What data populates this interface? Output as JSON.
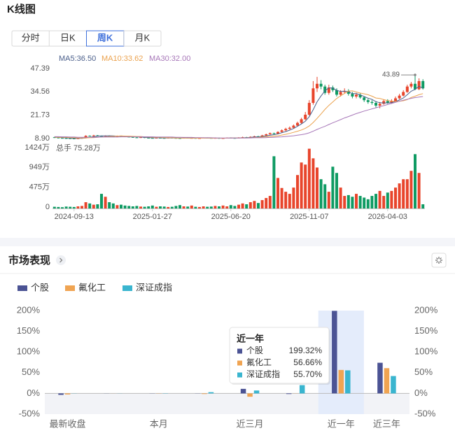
{
  "header": {
    "title": "K线图"
  },
  "tabs": [
    "分时",
    "日K",
    "周K",
    "月K"
  ],
  "active_tab": 2,
  "chart_data": [
    {
      "type": "candlestick",
      "up_color": "#e8452c",
      "down_color": "#0f9b63",
      "x": [
        null,
        null,
        null,
        null,
        null,
        "2024-09-13",
        null,
        null,
        null,
        null,
        null,
        null,
        null,
        null,
        null,
        null,
        null,
        null,
        null,
        null,
        null,
        null,
        null,
        null,
        null,
        "2025-01-27",
        null,
        null,
        null,
        null,
        null,
        null,
        null,
        null,
        null,
        null,
        null,
        null,
        null,
        null,
        null,
        null,
        null,
        null,
        null,
        "2025-06-20",
        null,
        null,
        null,
        null,
        null,
        null,
        null,
        null,
        null,
        null,
        null,
        null,
        null,
        null,
        null,
        null,
        null,
        null,
        null,
        "2025-11-07",
        null,
        null,
        null,
        null,
        null,
        null,
        null,
        null,
        null,
        null,
        null,
        null,
        null,
        null,
        null,
        null,
        null,
        null,
        null,
        "2026-04-03",
        null,
        null,
        null,
        null,
        null,
        null,
        null,
        null,
        null
      ],
      "open": [
        9.6,
        9.4,
        9.2,
        9.1,
        9.0,
        8.9,
        8.8,
        9.0,
        9.3,
        10.4,
        10.2,
        10.6,
        10.3,
        10.1,
        10.4,
        10.2,
        10.0,
        10.3,
        10.1,
        9.9,
        9.7,
        9.5,
        9.4,
        9.6,
        9.3,
        9.2,
        9.1,
        9.3,
        9.2,
        9.0,
        9.4,
        9.2,
        9.1,
        9.0,
        9.3,
        9.1,
        9.2,
        9.0,
        9.1,
        9.3,
        9.2,
        9.1,
        9.2,
        9.0,
        9.1,
        9.3,
        9.2,
        9.0,
        9.4,
        9.6,
        9.5,
        9.8,
        10.1,
        10.0,
        10.6,
        11.2,
        11.8,
        11.5,
        12.5,
        13.4,
        14.2,
        14.8,
        16.0,
        17.5,
        19.5,
        22.0,
        28.5,
        36.5,
        39.0,
        37.5,
        34.0,
        37.0,
        35.5,
        33.0,
        34.5,
        35.0,
        33.5,
        32.0,
        33.0,
        31.5,
        30.0,
        29.0,
        28.5,
        27.0,
        28.0,
        29.5,
        28.5,
        29.5,
        31.0,
        32.5,
        34.5,
        37.5,
        39.0,
        36.0,
        40.5
      ],
      "high": [
        9.8,
        9.6,
        9.4,
        9.3,
        9.2,
        9.1,
        9.2,
        9.5,
        10.7,
        10.6,
        10.9,
        10.8,
        10.5,
        10.6,
        10.6,
        10.4,
        10.5,
        10.5,
        10.3,
        10.1,
        9.9,
        9.7,
        9.8,
        9.8,
        9.5,
        9.4,
        9.5,
        9.5,
        9.4,
        9.6,
        9.6,
        9.4,
        9.3,
        9.5,
        9.5,
        9.4,
        9.4,
        9.3,
        9.5,
        9.5,
        9.4,
        9.4,
        9.4,
        9.3,
        9.5,
        9.5,
        9.4,
        9.6,
        9.9,
        9.8,
        10.1,
        10.4,
        10.4,
        10.9,
        11.6,
        12.2,
        12.1,
        12.9,
        13.9,
        14.8,
        15.5,
        16.6,
        18.2,
        20.3,
        23.5,
        30.0,
        40.5,
        42.8,
        41.0,
        38.5,
        38.5,
        38.0,
        36.5,
        35.5,
        36.5,
        36.0,
        34.5,
        34.0,
        33.8,
        32.0,
        30.8,
        30.0,
        29.5,
        29.0,
        30.5,
        30.5,
        30.5,
        32.0,
        33.5,
        35.5,
        38.5,
        40.0,
        43.89,
        42.0,
        41.5
      ],
      "low": [
        9.2,
        9.0,
        8.9,
        8.8,
        8.7,
        8.6,
        8.6,
        8.8,
        9.2,
        10.0,
        10.0,
        10.1,
        9.9,
        9.9,
        10.0,
        9.8,
        9.8,
        9.9,
        9.7,
        9.5,
        9.3,
        9.2,
        9.2,
        9.1,
        9.0,
        8.9,
        8.9,
        9.0,
        8.8,
        8.9,
        9.0,
        8.9,
        8.8,
        8.9,
        8.9,
        8.9,
        8.8,
        8.9,
        8.9,
        9.0,
        8.9,
        8.9,
        8.8,
        8.9,
        9.0,
        9.0,
        8.8,
        8.9,
        9.2,
        9.3,
        9.4,
        9.6,
        9.8,
        9.8,
        10.4,
        11.0,
        11.2,
        11.3,
        12.2,
        13.0,
        13.8,
        14.5,
        15.6,
        17.0,
        19.0,
        21.5,
        27.5,
        34.5,
        36.0,
        33.0,
        33.0,
        34.5,
        32.0,
        32.0,
        33.5,
        32.5,
        31.0,
        31.0,
        30.8,
        29.0,
        28.0,
        27.5,
        26.0,
        25.5,
        27.5,
        28.0,
        28.0,
        29.0,
        30.5,
        32.0,
        34.0,
        36.5,
        35.5,
        35.5,
        35.8
      ],
      "close": [
        9.4,
        9.2,
        9.1,
        9.0,
        8.9,
        8.8,
        9.0,
        9.3,
        10.4,
        10.2,
        10.6,
        10.3,
        10.1,
        10.4,
        10.2,
        10.0,
        10.3,
        10.1,
        9.9,
        9.7,
        9.5,
        9.4,
        9.6,
        9.3,
        9.2,
        9.1,
        9.3,
        9.2,
        9.0,
        9.4,
        9.2,
        9.1,
        9.0,
        9.3,
        9.1,
        9.2,
        9.0,
        9.1,
        9.3,
        9.2,
        9.1,
        9.2,
        9.0,
        9.1,
        9.3,
        9.2,
        9.0,
        9.4,
        9.6,
        9.5,
        9.8,
        10.1,
        10.0,
        10.6,
        11.2,
        11.8,
        11.5,
        12.5,
        13.4,
        14.2,
        14.8,
        16.0,
        17.5,
        19.5,
        22.0,
        28.5,
        36.5,
        39.0,
        37.5,
        34.0,
        37.0,
        35.5,
        33.0,
        34.5,
        35.0,
        33.5,
        32.0,
        33.0,
        31.5,
        30.0,
        29.0,
        28.5,
        27.0,
        28.0,
        29.5,
        28.5,
        29.5,
        31.0,
        32.5,
        34.5,
        37.5,
        39.0,
        36.0,
        40.5,
        36.5
      ],
      "ma": [
        {
          "name": "MA5",
          "legend_label": "MA5:36.50",
          "color": "#4a5e8a",
          "values": [
            9.6,
            9.5,
            9.4,
            9.3,
            9.1,
            9.0,
            9.0,
            9.0,
            9.2,
            9.5,
            9.9,
            10.2,
            10.3,
            10.3,
            10.4,
            10.3,
            10.2,
            10.2,
            10.1,
            10.0,
            9.9,
            9.8,
            9.7,
            9.5,
            9.4,
            9.3,
            9.3,
            9.3,
            9.2,
            9.2,
            9.2,
            9.2,
            9.1,
            9.2,
            9.1,
            9.1,
            9.1,
            9.1,
            9.1,
            9.2,
            9.1,
            9.2,
            9.1,
            9.1,
            9.1,
            9.2,
            9.2,
            9.2,
            9.3,
            9.3,
            9.5,
            9.7,
            9.8,
            10.0,
            10.3,
            10.7,
            11.0,
            11.4,
            12.1,
            12.7,
            13.5,
            14.4,
            15.6,
            16.9,
            18.4,
            20.9,
            24.7,
            29.1,
            32.3,
            35.1,
            36.8,
            36.6,
            35.4,
            34.8,
            35.0,
            34.6,
            33.6,
            33.6,
            32.9,
            32.0,
            31.1,
            30.4,
            29.2,
            28.6,
            28.4,
            28.5,
            28.6,
            29.3,
            30.1,
            31.2,
            33.0,
            34.9,
            35.9,
            37.7,
            36.5
          ]
        },
        {
          "name": "MA10",
          "legend_label": "MA10:33.62",
          "color": "#eba24e",
          "values": [
            9.7,
            9.6,
            9.6,
            9.5,
            9.4,
            9.3,
            9.2,
            9.2,
            9.2,
            9.3,
            9.4,
            9.6,
            9.7,
            9.8,
            10.0,
            10.1,
            10.2,
            10.3,
            10.2,
            10.2,
            10.1,
            10.0,
            10.0,
            9.8,
            9.7,
            9.6,
            9.5,
            9.5,
            9.4,
            9.3,
            9.3,
            9.2,
            9.2,
            9.2,
            9.2,
            9.2,
            9.1,
            9.1,
            9.1,
            9.2,
            9.1,
            9.1,
            9.1,
            9.1,
            9.1,
            9.2,
            9.2,
            9.2,
            9.2,
            9.2,
            9.3,
            9.4,
            9.5,
            9.7,
            9.8,
            10.0,
            10.2,
            10.4,
            10.8,
            11.2,
            11.7,
            12.3,
            12.9,
            13.6,
            14.5,
            15.8,
            17.7,
            20.0,
            22.4,
            24.9,
            27.1,
            29.0,
            30.9,
            32.4,
            33.7,
            35.0,
            35.1,
            34.5,
            33.9,
            33.5,
            33.0,
            32.2,
            31.2,
            30.9,
            30.3,
            29.8,
            29.5,
            29.3,
            29.4,
            29.7,
            30.3,
            31.5,
            32.2,
            33.0,
            33.62
          ]
        },
        {
          "name": "MA30",
          "legend_label": "MA30:32.00",
          "color": "#a777b8",
          "values": [
            9.9,
            9.9,
            9.8,
            9.8,
            9.7,
            9.7,
            9.6,
            9.6,
            9.6,
            9.6,
            9.6,
            9.6,
            9.7,
            9.7,
            9.7,
            9.7,
            9.7,
            9.8,
            9.8,
            9.8,
            9.8,
            9.8,
            9.8,
            9.8,
            9.8,
            9.8,
            9.7,
            9.7,
            9.7,
            9.7,
            9.7,
            9.6,
            9.6,
            9.5,
            9.5,
            9.5,
            9.4,
            9.4,
            9.3,
            9.3,
            9.3,
            9.2,
            9.2,
            9.2,
            9.2,
            9.2,
            9.2,
            9.2,
            9.2,
            9.2,
            9.2,
            9.3,
            9.3,
            9.3,
            9.4,
            9.5,
            9.6,
            9.7,
            9.8,
            10.0,
            10.2,
            10.4,
            10.7,
            11.0,
            11.4,
            12.0,
            12.9,
            13.9,
            14.8,
            15.6,
            16.6,
            17.5,
            18.4,
            19.3,
            20.2,
            21.0,
            21.8,
            22.6,
            23.3,
            24.0,
            24.6,
            25.2,
            25.8,
            26.4,
            27.0,
            27.6,
            28.2,
            28.8,
            29.4,
            30.0,
            30.5,
            31.0,
            31.4,
            31.7,
            32.0
          ]
        }
      ],
      "ylim": [
        6.2,
        47.39
      ],
      "yticks": [
        {
          "value": 8.9,
          "label": "8.90"
        },
        21.73,
        34.56,
        47.39
      ]
    },
    {
      "type": "volume",
      "annotation": "总手 75.28万",
      "values": [
        40,
        35,
        30,
        45,
        40,
        35,
        50,
        60,
        150,
        120,
        90,
        100,
        350,
        280,
        150,
        120,
        80,
        90,
        70,
        60,
        50,
        60,
        45,
        40,
        50,
        70,
        40,
        50,
        45,
        35,
        40,
        60,
        80,
        50,
        45,
        70,
        40,
        35,
        50,
        40,
        45,
        60,
        50,
        70,
        50,
        80,
        60,
        90,
        120,
        100,
        150,
        180,
        130,
        200,
        250,
        300,
        1250,
        730,
        490,
        400,
        350,
        500,
        800,
        1100,
        1050,
        1430,
        1200,
        980,
        700,
        580,
        400,
        1000,
        850,
        500,
        300,
        320,
        280,
        350,
        300,
        260,
        220,
        300,
        350,
        420,
        300,
        380,
        420,
        500,
        600,
        700,
        700,
        900,
        1300,
        850,
        100
      ],
      "ylim": [
        0,
        1440
      ],
      "yticks": [
        0,
        {
          "value": 475,
          "label": "475万"
        },
        {
          "value": 949,
          "label": "949万"
        },
        {
          "value": 1424,
          "label": "1424万"
        }
      ]
    },
    {
      "type": "grouped_bar",
      "title": "市场表现",
      "categories": [
        "最新收盘",
        null,
        "本月",
        null,
        "近三月",
        null,
        "近一年",
        "近三年"
      ],
      "series": [
        {
          "name": "个股",
          "color": "#4b5394",
          "values": [
            -3.5,
            0.2,
            0.3,
            0.3,
            11,
            -1.5,
            199.32,
            74
          ],
          "value_labels": [
            null,
            null,
            null,
            null,
            null,
            null,
            "199.32%",
            null
          ]
        },
        {
          "name": "氟化工",
          "color": "#f0a452",
          "values": [
            -2.5,
            0.1,
            -0.4,
            -1.5,
            -8,
            0.3,
            56.66,
            61
          ],
          "value_labels": [
            null,
            null,
            null,
            null,
            null,
            null,
            "56.66%",
            null
          ]
        },
        {
          "name": "深证成指",
          "color": "#3ab5cf",
          "values": [
            0.3,
            -0.2,
            0.5,
            3,
            7,
            20,
            55.7,
            42
          ],
          "value_labels": [
            null,
            null,
            null,
            null,
            null,
            null,
            "55.70%",
            null
          ]
        }
      ],
      "ylim": [
        -50,
        200
      ],
      "yticks": [
        {
          "value": -50,
          "label": "-50%"
        },
        {
          "value": 0,
          "label": "0%"
        },
        {
          "value": 50,
          "label": "50%"
        },
        {
          "value": 100,
          "label": "100%"
        },
        {
          "value": 150,
          "label": "150%"
        },
        {
          "value": 200,
          "label": "200%"
        }
      ],
      "y2lim": [
        -50,
        200
      ],
      "y2ticks": [
        {
          "value": -50,
          "label": "-50%"
        },
        {
          "value": 0,
          "label": "0%"
        },
        {
          "value": 50,
          "label": "50%"
        },
        {
          "value": 100,
          "label": "100%"
        },
        {
          "value": 150,
          "label": "150%"
        },
        {
          "value": 200,
          "label": "200%"
        }
      ],
      "highlight_index": 6
    }
  ]
}
